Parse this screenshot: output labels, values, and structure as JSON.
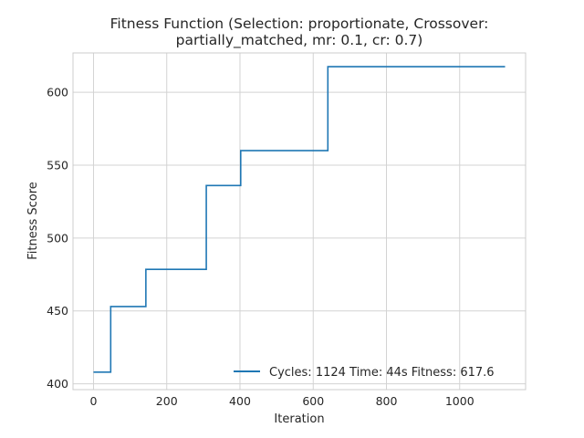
{
  "chart_data": {
    "type": "line",
    "title_line1": "Fitness Function (Selection: proportionate, Crossover:",
    "title_line2": "partially_matched, mr: 0.1, cr: 0.7)",
    "xlabel": "Iteration",
    "ylabel": "Fitness Score",
    "xlim": [
      -56,
      1180
    ],
    "ylim": [
      396,
      627
    ],
    "xticks": [
      0,
      200,
      400,
      600,
      800,
      1000
    ],
    "yticks": [
      400,
      450,
      500,
      550,
      600
    ],
    "grid": true,
    "legend_position": "lower-right",
    "series": [
      {
        "name": "Cycles: 1124 Time: 44s Fitness: 617.6",
        "color": "#1f77b4",
        "step": true,
        "x": [
          0,
          47,
          47,
          143,
          143,
          308,
          308,
          402,
          402,
          640,
          640,
          1124
        ],
        "y": [
          408,
          408,
          453,
          453,
          478.5,
          478.5,
          536,
          536,
          560,
          560,
          617.6,
          617.6
        ]
      }
    ]
  }
}
